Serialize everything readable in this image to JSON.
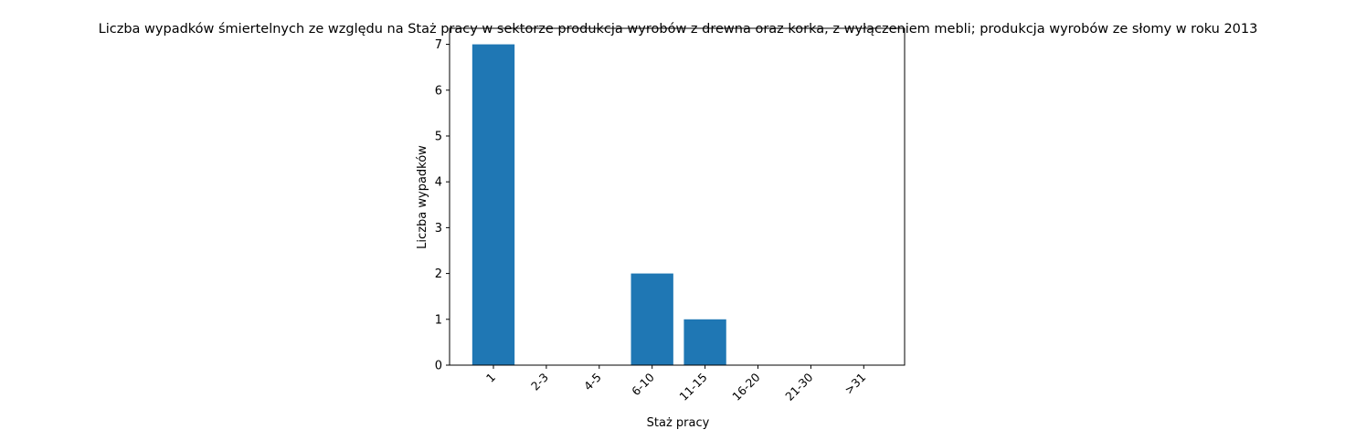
{
  "chart_data": {
    "type": "bar",
    "title": "Liczba wypadków śmiertelnych ze względu na Staż pracy w sektorze produkcja wyrobów z drewna oraz korka, z wyłączeniem mebli; produkcja wyrobów ze słomy w roku 2013",
    "xlabel": "Staż pracy",
    "ylabel": "Liczba wypadków",
    "categories": [
      "1",
      "2-3",
      "4-5",
      "6-10",
      "11-15",
      "16-20",
      "21-30",
      ">31"
    ],
    "values": [
      7,
      0,
      0,
      2,
      1,
      0,
      0,
      0
    ],
    "ylim": [
      0,
      7.35
    ],
    "yticks": [
      0,
      1,
      2,
      3,
      4,
      5,
      6,
      7
    ],
    "grid": false,
    "bar_color": "#1f77b4"
  }
}
